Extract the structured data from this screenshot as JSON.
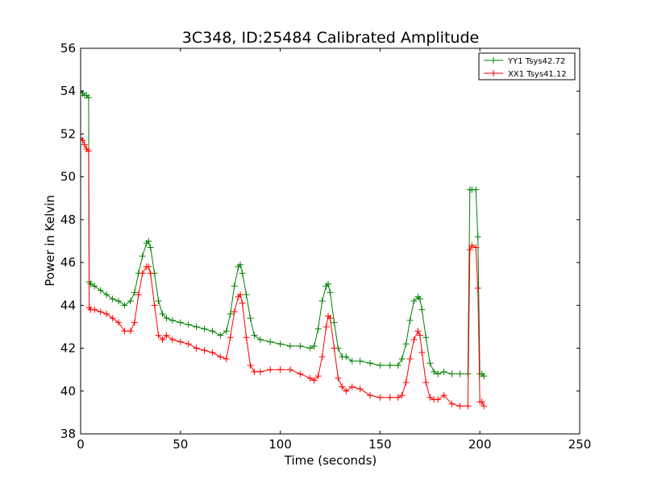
{
  "chart_data": {
    "type": "line",
    "title": "3C348, ID:25484 Calibrated Amplitude",
    "xlabel": "Time (seconds)",
    "ylabel": "Power in Kelvin",
    "xlim": [
      0,
      250
    ],
    "ylim": [
      38,
      56
    ],
    "xticks": [
      0,
      50,
      100,
      150,
      200,
      250
    ],
    "yticks": [
      38,
      40,
      42,
      44,
      46,
      48,
      50,
      52,
      54,
      56
    ],
    "grid": false,
    "legend_position": "top-right",
    "marker": "+",
    "series": [
      {
        "name": "YY1 Tsys42.72",
        "color": "#008000",
        "x": [
          0,
          1,
          2,
          3,
          4,
          4.3,
          5,
          7,
          10,
          13,
          16,
          19,
          22,
          25,
          27,
          29,
          31,
          33,
          34,
          35,
          37,
          39,
          41,
          43,
          46,
          50,
          54,
          58,
          62,
          66,
          70,
          73,
          75,
          77,
          79,
          80,
          81,
          83,
          85,
          87,
          90,
          95,
          100,
          105,
          110,
          115,
          117,
          119,
          121,
          123,
          124,
          125,
          127,
          129,
          131,
          133,
          136,
          140,
          145,
          150,
          155,
          159,
          161,
          163,
          165,
          167,
          169,
          170,
          171,
          173,
          175,
          177,
          179,
          182,
          186,
          190,
          194,
          195,
          196,
          198,
          199,
          200,
          201,
          202
        ],
        "y": [
          54.0,
          53.9,
          53.8,
          53.8,
          53.7,
          45.1,
          45.0,
          44.9,
          44.7,
          44.5,
          44.3,
          44.2,
          44.0,
          44.2,
          44.6,
          45.5,
          46.3,
          46.9,
          47.0,
          46.7,
          45.5,
          44.2,
          43.6,
          43.4,
          43.3,
          43.2,
          43.1,
          43.0,
          42.9,
          42.8,
          42.6,
          42.8,
          43.6,
          44.9,
          45.8,
          45.9,
          45.5,
          44.5,
          43.4,
          42.6,
          42.4,
          42.3,
          42.2,
          42.1,
          42.1,
          42.0,
          42.1,
          42.9,
          44.2,
          44.9,
          45.0,
          44.6,
          43.2,
          42.0,
          41.6,
          41.6,
          41.4,
          41.4,
          41.3,
          41.2,
          41.2,
          41.2,
          41.5,
          42.2,
          43.3,
          44.2,
          44.4,
          44.3,
          43.8,
          42.5,
          41.3,
          40.9,
          40.8,
          40.9,
          40.8,
          40.8,
          40.8,
          49.4,
          49.4,
          49.4,
          47.2,
          40.8,
          40.8,
          40.7
        ]
      },
      {
        "name": "XX1 Tsys41.12",
        "color": "#ff0000",
        "x": [
          0,
          1,
          2,
          3,
          4,
          4.3,
          5,
          7,
          10,
          13,
          16,
          19,
          22,
          25,
          27,
          29,
          31,
          33,
          34,
          35,
          37,
          39,
          41,
          43,
          46,
          50,
          54,
          58,
          62,
          66,
          70,
          73,
          75,
          77,
          79,
          80,
          81,
          83,
          85,
          87,
          90,
          95,
          100,
          105,
          110,
          115,
          117,
          119,
          121,
          123,
          124,
          125,
          127,
          129,
          131,
          133,
          136,
          140,
          145,
          150,
          155,
          159,
          161,
          163,
          165,
          167,
          169,
          170,
          171,
          173,
          175,
          177,
          179,
          182,
          186,
          190,
          194,
          195,
          196,
          198,
          199,
          200,
          201,
          202
        ],
        "y": [
          51.8,
          51.7,
          51.5,
          51.3,
          51.2,
          43.9,
          43.8,
          43.8,
          43.7,
          43.6,
          43.4,
          43.2,
          42.8,
          42.8,
          43.2,
          44.5,
          45.5,
          45.8,
          45.8,
          45.5,
          44.0,
          42.6,
          42.4,
          42.6,
          42.4,
          42.3,
          42.2,
          42.0,
          41.9,
          41.8,
          41.6,
          41.5,
          42.5,
          43.7,
          44.4,
          44.5,
          44.1,
          42.5,
          41.2,
          40.9,
          40.9,
          41.0,
          41.0,
          41.0,
          40.8,
          40.6,
          40.5,
          40.7,
          41.6,
          43.0,
          43.5,
          43.4,
          42.0,
          40.6,
          40.2,
          40.0,
          40.2,
          40.1,
          39.8,
          39.7,
          39.7,
          39.7,
          39.8,
          40.4,
          41.5,
          42.4,
          42.8,
          42.6,
          41.8,
          40.4,
          39.7,
          39.6,
          39.6,
          39.8,
          39.4,
          39.3,
          39.3,
          46.6,
          46.8,
          46.7,
          44.8,
          39.5,
          39.5,
          39.3
        ]
      }
    ]
  }
}
